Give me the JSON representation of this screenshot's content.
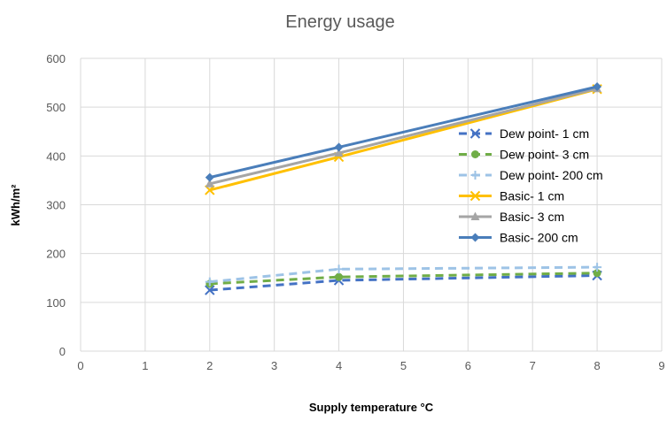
{
  "chart_data": {
    "type": "line",
    "title": "Energy usage",
    "xlabel": "Supply temperature °C",
    "ylabel": "kWh/m²",
    "xlim": [
      0,
      9
    ],
    "ylim": [
      0,
      600
    ],
    "x_ticks": [
      "0",
      "1",
      "2",
      "3",
      "4",
      "5",
      "6",
      "7",
      "8",
      "9"
    ],
    "y_ticks": [
      "0",
      "100",
      "200",
      "300",
      "400",
      "500",
      "600"
    ],
    "grid": true,
    "legend_position": "right",
    "x": [
      2,
      4,
      8
    ],
    "series": [
      {
        "name": "Dew point- 1 cm",
        "values": [
          125,
          145,
          155
        ],
        "color": "#4472c4",
        "dash": true,
        "marker": "x"
      },
      {
        "name": "Dew point- 3 cm",
        "values": [
          138,
          152,
          160
        ],
        "color": "#70ad47",
        "dash": true,
        "marker": "circle"
      },
      {
        "name": "Dew point- 200 cm",
        "values": [
          142,
          168,
          172
        ],
        "color": "#9dc3e6",
        "dash": true,
        "marker": "plus"
      },
      {
        "name": "Basic- 1 cm",
        "values": [
          330,
          398,
          537
        ],
        "color": "#ffc000",
        "dash": false,
        "marker": "x"
      },
      {
        "name": "Basic- 3 cm",
        "values": [
          343,
          406,
          538
        ],
        "color": "#a5a5a5",
        "dash": false,
        "marker": "triangle"
      },
      {
        "name": "Basic- 200 cm",
        "values": [
          356,
          418,
          542
        ],
        "color": "#4a7eba",
        "dash": false,
        "marker": "diamond"
      }
    ]
  }
}
